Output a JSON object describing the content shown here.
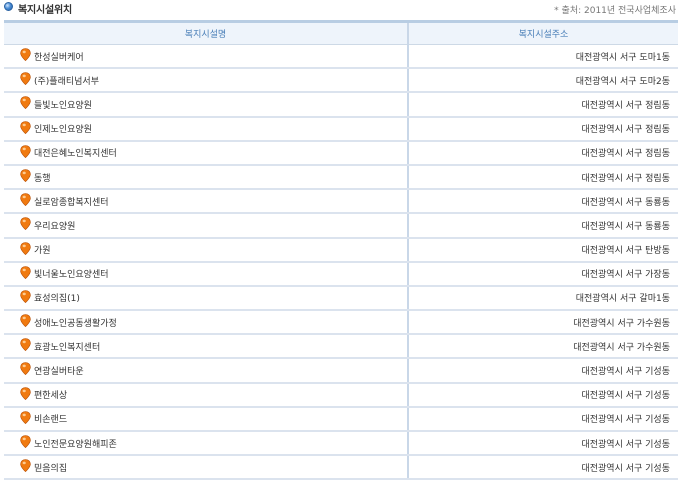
{
  "header": {
    "title": "복지시설위치",
    "source": "* 출처: 2011년 전국사업체조사"
  },
  "table": {
    "columns": [
      "복지시설명",
      "복지시설주소"
    ],
    "rows": [
      {
        "name": "한성실버케어",
        "address": "대전광역시 서구 도마1동"
      },
      {
        "name": "(주)플래티넘서부",
        "address": "대전광역시 서구 도마2동"
      },
      {
        "name": "들빛노인요양원",
        "address": "대전광역시 서구 정림동"
      },
      {
        "name": "인제노인요양원",
        "address": "대전광역시 서구 정림동"
      },
      {
        "name": "대전은혜노인복지센터",
        "address": "대전광역시 서구 정림동"
      },
      {
        "name": "동행",
        "address": "대전광역시 서구 정림동"
      },
      {
        "name": "실로암종합복지센터",
        "address": "대전광역시 서구 동룡동"
      },
      {
        "name": "우리요양원",
        "address": "대전광역시 서구 동룡동"
      },
      {
        "name": "가원",
        "address": "대전광역시 서구 탄방동"
      },
      {
        "name": "빛너울노인요양센터",
        "address": "대전광역시 서구 가장동"
      },
      {
        "name": "효성의집(1)",
        "address": "대전광역시 서구 갈마1동"
      },
      {
        "name": "성애노인공동생활가정",
        "address": "대전광역시 서구 가수원동"
      },
      {
        "name": "효광노인복지센터",
        "address": "대전광역시 서구 가수원동"
      },
      {
        "name": "연광실버타운",
        "address": "대전광역시 서구 기성동"
      },
      {
        "name": "편한세상",
        "address": "대전광역시 서구 기성동"
      },
      {
        "name": "비손랜드",
        "address": "대전광역시 서구 기성동"
      },
      {
        "name": "노인전문요양원해피존",
        "address": "대전광역시 서구 기성동"
      },
      {
        "name": "믿음의집",
        "address": "대전광역시 서구 기성동"
      }
    ]
  },
  "colors": {
    "pin": "#f07a10",
    "header_text": "#4a7fb8",
    "header_bg": "#eef4fb"
  }
}
